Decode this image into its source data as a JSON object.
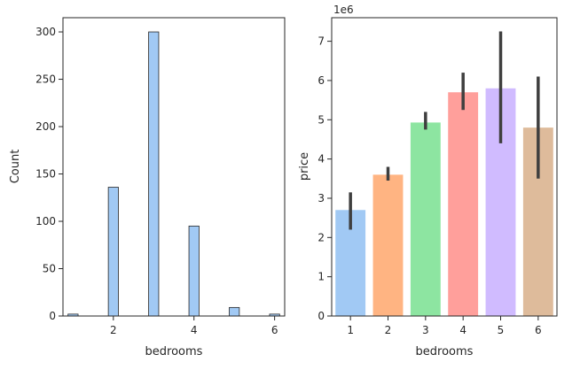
{
  "chart_data": [
    {
      "type": "bar",
      "subtype": "histogram",
      "xlabel": "bedrooms",
      "ylabel": "Count",
      "xlim": [
        0.75,
        6.25
      ],
      "ylim": [
        0,
        315
      ],
      "xticks": [
        "2",
        "4",
        "6"
      ],
      "yticks": [
        "0",
        "50",
        "100",
        "150",
        "200",
        "250",
        "300"
      ],
      "bar_width": 0.25,
      "bins": [
        {
          "x": 1,
          "count": 2
        },
        {
          "x": 2,
          "count": 136
        },
        {
          "x": 3,
          "count": 300
        },
        {
          "x": 4,
          "count": 95
        },
        {
          "x": 5,
          "count": 9
        },
        {
          "x": 6,
          "count": 2
        }
      ],
      "color": "#a1c9f4",
      "grid": false
    },
    {
      "type": "bar",
      "xlabel": "bedrooms",
      "ylabel": "price",
      "offset_text": "1e6",
      "categories": [
        "1",
        "2",
        "3",
        "4",
        "5",
        "6"
      ],
      "values": [
        2.7,
        3.6,
        4.93,
        5.7,
        5.8,
        4.8
      ],
      "ci_low": [
        2.2,
        3.45,
        4.75,
        5.25,
        4.4,
        3.5
      ],
      "ci_high": [
        3.15,
        3.8,
        5.2,
        6.2,
        7.25,
        6.1
      ],
      "colors": [
        "#a1c9f4",
        "#ffb482",
        "#8de5a1",
        "#ff9f9b",
        "#d0bbff",
        "#debb9b"
      ],
      "ylim": [
        0,
        7.6
      ],
      "yticks": [
        "0",
        "1",
        "2",
        "3",
        "4",
        "5",
        "6",
        "7"
      ],
      "grid": false
    }
  ]
}
